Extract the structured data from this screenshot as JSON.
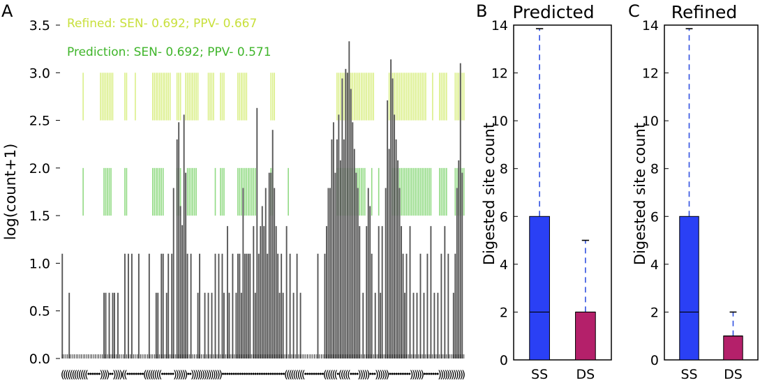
{
  "colors": {
    "refined": "#d4ec72",
    "prediction": "#7dd36c",
    "refined_text": "#c8e03c",
    "prediction_text": "#3fb52a",
    "bar": "#444444",
    "ss_box": "#2a40f5",
    "ds_box": "#b4206a",
    "whisker": "#3050e0"
  },
  "chart_data": [
    {
      "panel": "A",
      "type": "bar",
      "ylabel": "log(count+1)",
      "yticks": [
        "0.0",
        "0.5",
        "1.0",
        "1.5",
        "2.0",
        "2.5",
        "3.0",
        "3.5"
      ],
      "ylim": [
        0,
        3.5
      ],
      "legend": [
        {
          "label": "Refined: SEN- 0.692; PPV- 0.667",
          "color": "refined"
        },
        {
          "label": "Prediction: SEN- 0.692; PPV- 0.571",
          "color": "prediction"
        }
      ],
      "structure": "((((((((((((......))))..))))((........((((((((......))))))..)))))))))))))).............................(((((((((.........((((((.(((((....)))))...))))))..........)))))).......))))))))))))",
      "n_positions": 232,
      "bars": [
        [
          0,
          1.1
        ],
        [
          4,
          0.69
        ],
        [
          24,
          0.69
        ],
        [
          25,
          0.69
        ],
        [
          27,
          0.69
        ],
        [
          29,
          0.69
        ],
        [
          30,
          0.69
        ],
        [
          32,
          0.69
        ],
        [
          36,
          1.1
        ],
        [
          38,
          1.1
        ],
        [
          40,
          1.1
        ],
        [
          44,
          1.1
        ],
        [
          50,
          1.1
        ],
        [
          54,
          0.69
        ],
        [
          55,
          0.69
        ],
        [
          57,
          1.1
        ],
        [
          58,
          1.1
        ],
        [
          60,
          0.69
        ],
        [
          61,
          1.1
        ],
        [
          63,
          1.1
        ],
        [
          64,
          1.79
        ],
        [
          66,
          2.3
        ],
        [
          67,
          2.48
        ],
        [
          68,
          1.6
        ],
        [
          69,
          1.4
        ],
        [
          70,
          2.56
        ],
        [
          71,
          1.95
        ],
        [
          72,
          1.1
        ],
        [
          74,
          1.1
        ],
        [
          78,
          0.69
        ],
        [
          79,
          1.1
        ],
        [
          82,
          0.69
        ],
        [
          84,
          0.69
        ],
        [
          86,
          0.69
        ],
        [
          88,
          1.1
        ],
        [
          90,
          1.1
        ],
        [
          92,
          1.1
        ],
        [
          93,
          0.69
        ],
        [
          95,
          1.39
        ],
        [
          96,
          0.69
        ],
        [
          98,
          1.1
        ],
        [
          100,
          0.69
        ],
        [
          101,
          1.1
        ],
        [
          102,
          1.1
        ],
        [
          103,
          0.69
        ],
        [
          104,
          1.79
        ],
        [
          105,
          1.1
        ],
        [
          106,
          1.1
        ],
        [
          107,
          1.1
        ],
        [
          108,
          1.1
        ],
        [
          110,
          1.39
        ],
        [
          111,
          0.69
        ],
        [
          112,
          2.63
        ],
        [
          113,
          1.1
        ],
        [
          114,
          1.39
        ],
        [
          115,
          1.6
        ],
        [
          116,
          1.39
        ],
        [
          117,
          1.79
        ],
        [
          118,
          1.1
        ],
        [
          119,
          1.95
        ],
        [
          120,
          1.95
        ],
        [
          121,
          2.4
        ],
        [
          122,
          1.79
        ],
        [
          123,
          1.39
        ],
        [
          124,
          1.1
        ],
        [
          125,
          0.69
        ],
        [
          126,
          1.1
        ],
        [
          127,
          0.69
        ],
        [
          129,
          1.39
        ],
        [
          131,
          1.1
        ],
        [
          133,
          0.69
        ],
        [
          135,
          1.1
        ],
        [
          137,
          0.69
        ],
        [
          147,
          1.1
        ],
        [
          151,
          1.1
        ],
        [
          152,
          1.39
        ],
        [
          153,
          1.79
        ],
        [
          154,
          1.79
        ],
        [
          155,
          2.3
        ],
        [
          156,
          2.48
        ],
        [
          157,
          1.95
        ],
        [
          158,
          2.3
        ],
        [
          159,
          2.56
        ],
        [
          160,
          2.08
        ],
        [
          161,
          2.94
        ],
        [
          162,
          2.3
        ],
        [
          163,
          3.04
        ],
        [
          164,
          3.0
        ],
        [
          165,
          3.33
        ],
        [
          166,
          2.83
        ],
        [
          167,
          2.48
        ],
        [
          168,
          2.2
        ],
        [
          169,
          1.95
        ],
        [
          170,
          1.79
        ],
        [
          171,
          1.39
        ],
        [
          173,
          0.69
        ],
        [
          175,
          1.39
        ],
        [
          176,
          1.79
        ],
        [
          177,
          1.6
        ],
        [
          178,
          1.1
        ],
        [
          180,
          0.69
        ],
        [
          182,
          1.39
        ],
        [
          183,
          0.69
        ],
        [
          184,
          1.39
        ],
        [
          186,
          1.79
        ],
        [
          187,
          2.71
        ],
        [
          188,
          2.2
        ],
        [
          189,
          3.14
        ],
        [
          190,
          2.94
        ],
        [
          191,
          2.56
        ],
        [
          192,
          2.3
        ],
        [
          193,
          2.08
        ],
        [
          194,
          1.79
        ],
        [
          195,
          1.39
        ],
        [
          196,
          1.1
        ],
        [
          197,
          0.69
        ],
        [
          198,
          1.1
        ],
        [
          200,
          1.39
        ],
        [
          202,
          0.69
        ],
        [
          204,
          0.69
        ],
        [
          206,
          1.1
        ],
        [
          208,
          0.69
        ],
        [
          210,
          1.1
        ],
        [
          212,
          1.39
        ],
        [
          214,
          0.69
        ],
        [
          216,
          0.69
        ],
        [
          218,
          1.1
        ],
        [
          220,
          1.39
        ],
        [
          222,
          1.1
        ],
        [
          225,
          0.69
        ],
        [
          226,
          1.1
        ],
        [
          227,
          1.79
        ],
        [
          228,
          2.08
        ],
        [
          229,
          3.1
        ],
        [
          230,
          1.95
        ]
      ],
      "refined_ranges": [
        [
          12,
          13
        ],
        [
          22,
          30
        ],
        [
          33,
          33
        ],
        [
          36,
          38
        ],
        [
          42,
          43
        ],
        [
          48,
          48
        ],
        [
          52,
          63
        ],
        [
          66,
          69
        ],
        [
          71,
          79
        ],
        [
          84,
          88
        ],
        [
          91,
          94
        ],
        [
          101,
          107
        ],
        [
          111,
          111
        ],
        [
          115,
          115
        ],
        [
          120,
          123
        ],
        [
          129,
          129
        ],
        [
          131,
          131
        ],
        [
          158,
          180
        ],
        [
          188,
          210
        ],
        [
          213,
          214
        ],
        [
          217,
          222
        ],
        [
          226,
          232
        ]
      ],
      "prediction_ranges": [
        [
          12,
          13
        ],
        [
          24,
          29
        ],
        [
          36,
          38
        ],
        [
          52,
          59
        ],
        [
          66,
          69
        ],
        [
          72,
          78
        ],
        [
          88,
          89
        ],
        [
          91,
          94
        ],
        [
          101,
          112
        ],
        [
          120,
          122
        ],
        [
          130,
          131
        ],
        [
          158,
          175
        ],
        [
          178,
          179
        ],
        [
          182,
          183
        ],
        [
          190,
          213
        ],
        [
          217,
          222
        ],
        [
          226,
          232
        ]
      ]
    },
    {
      "panel": "B",
      "type": "box",
      "title": "Predicted",
      "ylabel": "Digested site count",
      "yticks": [
        "0",
        "2",
        "4",
        "6",
        "8",
        "10",
        "12",
        "14"
      ],
      "ylim": [
        0,
        14
      ],
      "categories": [
        "SS",
        "DS"
      ],
      "boxes": [
        {
          "name": "SS",
          "q1": 0,
          "median": 2,
          "q3": 6,
          "whisker_max": 13.85
        },
        {
          "name": "DS",
          "q1": 0,
          "median": 2,
          "q3": 2,
          "whisker_max": 5
        }
      ]
    },
    {
      "panel": "C",
      "type": "box",
      "title": "Refined",
      "ylabel": "Digested site count",
      "yticks": [
        "0",
        "2",
        "4",
        "6",
        "8",
        "10",
        "12",
        "14"
      ],
      "ylim": [
        0,
        14
      ],
      "categories": [
        "SS",
        "DS"
      ],
      "boxes": [
        {
          "name": "SS",
          "q1": 0,
          "median": 2,
          "q3": 6,
          "whisker_max": 13.85
        },
        {
          "name": "DS",
          "q1": 0,
          "median": 1,
          "q3": 1,
          "whisker_max": 2
        }
      ]
    }
  ]
}
